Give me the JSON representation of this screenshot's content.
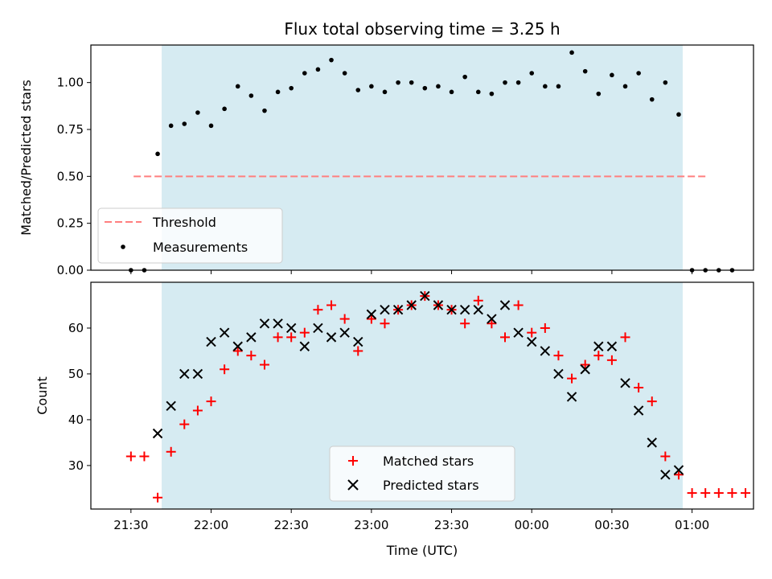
{
  "chart_data": [
    {
      "type": "scatter",
      "title": "Flux total observing time = 3.25 h",
      "xlabel": "",
      "ylabel": "Matched/Predicted stars",
      "ylim": [
        0,
        1.2
      ],
      "yticks": [
        "0.00",
        "0.25",
        "0.50",
        "0.75",
        "1.00"
      ],
      "xlim_minutes": [
        -15,
        233
      ],
      "shaded_interval_minutes": [
        11.5,
        206.5
      ],
      "shade_color": "#add8e6",
      "threshold": {
        "name": "Threshold",
        "value": 0.5,
        "x_range_minutes": [
          1,
          216
        ],
        "color": "#ff7f7f"
      },
      "legend": {
        "position": "lower-left",
        "entries": [
          "Threshold",
          "Measurements"
        ]
      },
      "series": [
        {
          "name": "Measurements",
          "color": "#000000",
          "x": [
            0,
            5,
            10,
            15,
            20,
            25,
            30,
            35,
            40,
            45,
            50,
            55,
            60,
            65,
            70,
            75,
            80,
            85,
            90,
            95,
            100,
            105,
            110,
            115,
            120,
            125,
            130,
            135,
            140,
            145,
            150,
            155,
            160,
            165,
            170,
            175,
            180,
            185,
            190,
            195,
            200,
            205,
            210,
            215
          ],
          "y": [
            0,
            0,
            0.62,
            0.77,
            0.78,
            0.84,
            0.77,
            0.86,
            0.98,
            0.93,
            0.85,
            0.95,
            0.97,
            1.05,
            1.07,
            1.12,
            1.05,
            0.96,
            0.98,
            0.95,
            1.0,
            1.0,
            0.97,
            0.98,
            0.95,
            1.03,
            0.95,
            0.94,
            1.0,
            1.0,
            1.05,
            0.98,
            0.98,
            1.16,
            1.06,
            0.94,
            1.04,
            0.98,
            1.05,
            0.91,
            1.0,
            0.83,
            0,
            0
          ],
          "x_extra": [
            220,
            225
          ],
          "y_extra": [
            0,
            0
          ]
        }
      ]
    },
    {
      "type": "scatter",
      "title": "",
      "xlabel": "Time (UTC)",
      "ylabel": "Count",
      "ylim": [
        20.5,
        70
      ],
      "yticks": [
        "30",
        "40",
        "50",
        "60"
      ],
      "xticks": [
        "21:30",
        "22:00",
        "22:30",
        "23:00",
        "23:30",
        "00:00",
        "00:30",
        "01:00"
      ],
      "xticks_minutes": [
        0,
        30,
        60,
        90,
        120,
        150,
        180,
        210
      ],
      "xlim_minutes": [
        -15,
        233
      ],
      "shaded_interval_minutes": [
        11.5,
        206.5
      ],
      "legend": {
        "position": "lower-center",
        "entries": [
          "Matched stars",
          "Predicted stars"
        ]
      },
      "series": [
        {
          "name": "Matched stars",
          "color": "#ff0000",
          "marker": "plus",
          "x": [
            0,
            5,
            10,
            15,
            20,
            25,
            30,
            35,
            40,
            45,
            50,
            55,
            60,
            65,
            70,
            75,
            80,
            85,
            90,
            95,
            100,
            105,
            110,
            115,
            120,
            125,
            130,
            135,
            140,
            145,
            150,
            155,
            160,
            165,
            170,
            175,
            180,
            185,
            190,
            195,
            200,
            205,
            210,
            215,
            220,
            225,
            230
          ],
          "y": [
            32,
            32,
            23,
            33,
            39,
            42,
            44,
            51,
            55,
            54,
            52,
            58,
            58,
            59,
            64,
            65,
            62,
            55,
            62,
            61,
            64,
            65,
            67,
            65,
            64,
            61,
            66,
            61,
            58,
            65,
            59,
            60,
            54,
            49,
            52,
            54,
            53,
            58,
            47,
            44,
            32,
            28,
            24,
            24,
            24,
            24,
            24
          ]
        },
        {
          "name": "Predicted stars",
          "color": "#000000",
          "marker": "x",
          "x": [
            10,
            15,
            20,
            25,
            30,
            35,
            40,
            45,
            50,
            55,
            60,
            65,
            70,
            75,
            80,
            85,
            90,
            95,
            100,
            105,
            110,
            115,
            120,
            125,
            130,
            135,
            140,
            145,
            150,
            155,
            160,
            165,
            170,
            175,
            180,
            185,
            190,
            195,
            200,
            205
          ],
          "y": [
            37,
            43,
            50,
            50,
            57,
            59,
            56,
            58,
            61,
            61,
            60,
            56,
            60,
            58,
            59,
            57,
            63,
            64,
            64,
            65,
            67,
            65,
            64,
            64,
            64,
            62,
            65,
            59,
            57,
            55,
            50,
            45,
            51,
            56,
            56,
            48,
            42,
            35,
            28,
            29
          ]
        }
      ]
    }
  ]
}
